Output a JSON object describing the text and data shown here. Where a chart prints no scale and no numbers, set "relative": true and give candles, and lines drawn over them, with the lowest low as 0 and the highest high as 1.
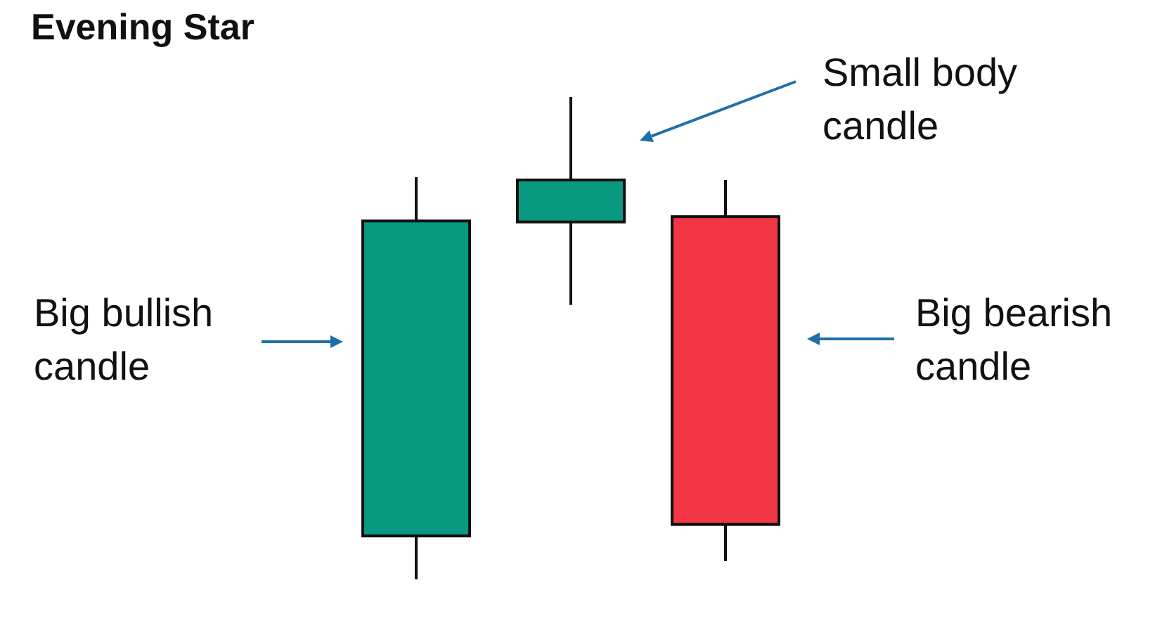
{
  "chart_data": {
    "type": "candlestick",
    "title": "Evening Star",
    "relative": true,
    "categories": [
      null,
      null,
      null
    ],
    "ohlc": [
      [
        0.09,
        0.834,
        0,
        0.743
      ],
      [
        0.741,
        1,
        0.569,
        0.828
      ],
      [
        0.752,
        0.828,
        0.038,
        0.114
      ]
    ],
    "colors": [
      "#089981",
      "#089981",
      "#f23645"
    ],
    "annotations": [
      "Big bullish candle",
      "Small body candle",
      "Big bearish candle"
    ]
  }
}
